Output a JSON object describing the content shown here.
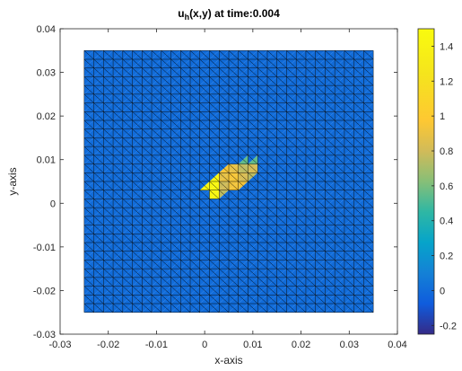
{
  "chart_data": {
    "type": "heatmap",
    "title_main": "u",
    "title_sub": "h",
    "title_rest": "(x,y) at time:0.004",
    "xlabel": "x-axis",
    "ylabel": "y-axis",
    "xlim": [
      -0.03,
      0.04
    ],
    "ylim": [
      -0.03,
      0.04
    ],
    "xticks": [
      -0.03,
      -0.02,
      -0.01,
      0,
      0.01,
      0.02,
      0.03,
      0.04
    ],
    "xtick_labels": [
      "-0.03",
      "-0.02",
      "-0.01",
      "0",
      "0.01",
      "0.02",
      "0.03",
      "0.04"
    ],
    "yticks": [
      -0.03,
      -0.02,
      -0.01,
      0,
      0.01,
      0.02,
      0.03,
      0.04
    ],
    "ytick_labels": [
      "-0.03",
      "-0.02",
      "-0.01",
      "0",
      "0.01",
      "0.02",
      "0.03",
      "0.04"
    ],
    "mesh": {
      "x_range": [
        -0.025,
        0.035
      ],
      "y_range": [
        -0.025,
        0.035
      ],
      "cells_x": 30,
      "cells_y": 30,
      "triangulated": true
    },
    "field": {
      "background_value": 0.0,
      "peak_value": 1.45,
      "peak_region_x": [
        0.0,
        0.0115
      ],
      "peak_region_y": [
        0.002,
        0.0095
      ]
    },
    "colorbar": {
      "colormap": "parula",
      "clim": [
        -0.25,
        1.5
      ],
      "ticks": [
        -0.2,
        0,
        0.2,
        0.4,
        0.6,
        0.8,
        1,
        1.2,
        1.4
      ],
      "tick_labels": [
        "-0.2",
        "0",
        "0.2",
        "0.4",
        "0.6",
        "0.8",
        "1",
        "1.2",
        "1.4"
      ]
    },
    "grid": false,
    "box": true
  }
}
